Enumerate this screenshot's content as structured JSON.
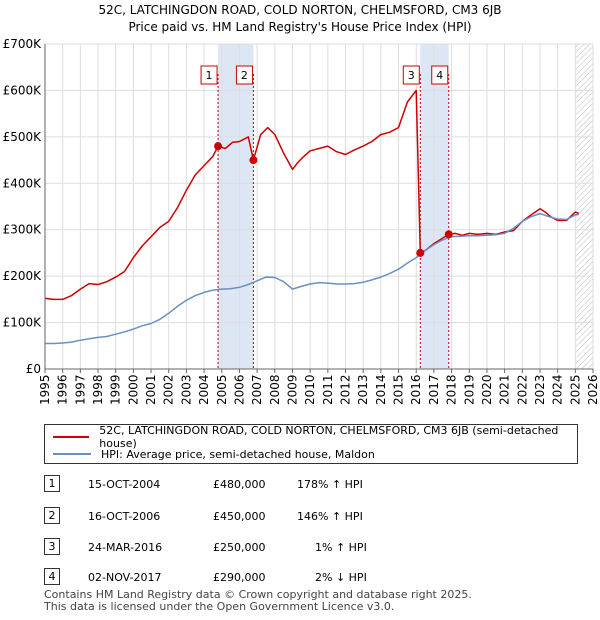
{
  "title": "52C, LATCHINGDON ROAD, COLD NORTON, CHELMSFORD, CM3 6JB",
  "subtitle": "Price paid vs. HM Land Registry's House Price Index (HPI)",
  "colors": {
    "property": "#cc0000",
    "hpi": "#6b8fc4",
    "shade": "#dde6f5",
    "marker_line": "#cc0000",
    "grid": "#dddddd"
  },
  "legend": {
    "property_label": "52C, LATCHINGDON ROAD, COLD NORTON, CHELMSFORD, CM3 6JB (semi-detached house)",
    "hpi_label": "HPI: Average price, semi-detached house, Maldon"
  },
  "sales": [
    {
      "num": "1",
      "date": "15-OCT-2004",
      "price": "£480,000",
      "hpi_delta": "178% ↑ HPI"
    },
    {
      "num": "2",
      "date": "16-OCT-2006",
      "price": "£450,000",
      "hpi_delta": "146% ↑ HPI"
    },
    {
      "num": "3",
      "date": "24-MAR-2016",
      "price": "£250,000",
      "hpi_delta": "1% ↑ HPI"
    },
    {
      "num": "4",
      "date": "02-NOV-2017",
      "price": "£290,000",
      "hpi_delta": "2% ↓ HPI"
    }
  ],
  "footer": {
    "line1": "Contains HM Land Registry data © Crown copyright and database right 2025.",
    "line2": "This data is licensed under the Open Government Licence v3.0."
  },
  "chart_data": {
    "type": "line",
    "xlim": [
      1995,
      2026
    ],
    "ylim": [
      0,
      700000
    ],
    "grid": true,
    "legend_position": "below",
    "y_ticks": [
      {
        "value": 0,
        "label": "£0"
      },
      {
        "value": 100000,
        "label": "£100K"
      },
      {
        "value": 200000,
        "label": "£200K"
      },
      {
        "value": 300000,
        "label": "£300K"
      },
      {
        "value": 400000,
        "label": "£400K"
      },
      {
        "value": 500000,
        "label": "£500K"
      },
      {
        "value": 600000,
        "label": "£600K"
      },
      {
        "value": 700000,
        "label": "£700K"
      }
    ],
    "x_ticks": [
      "1995",
      "1996",
      "1997",
      "1998",
      "1999",
      "2000",
      "2001",
      "2002",
      "2003",
      "2004",
      "2005",
      "2006",
      "2007",
      "2008",
      "2009",
      "2010",
      "2011",
      "2012",
      "2013",
      "2014",
      "2015",
      "2016",
      "2017",
      "2018",
      "2019",
      "2020",
      "2021",
      "2022",
      "2023",
      "2024",
      "2025",
      "2026"
    ],
    "shaded_ranges": [
      [
        2004.79,
        2006.79
      ],
      [
        2016.23,
        2017.84
      ]
    ],
    "future_hatch_from": 2025.0,
    "series": [
      {
        "name": "52C, LATCHINGDON ROAD, COLD NORTON, CHELMSFORD, CM3 6JB (semi-detached house)",
        "color": "#cc0000",
        "x": [
          1995.0,
          1995.5,
          1996.0,
          1996.5,
          1997.0,
          1997.5,
          1998.0,
          1998.5,
          1999.0,
          1999.5,
          2000.0,
          2000.5,
          2001.0,
          2001.5,
          2002.0,
          2002.5,
          2003.0,
          2003.5,
          2004.0,
          2004.5,
          2004.79,
          2005.2,
          2005.6,
          2006.0,
          2006.5,
          2006.79,
          2007.2,
          2007.6,
          2008.0,
          2008.5,
          2009.0,
          2009.3,
          2009.7,
          2010.0,
          2010.5,
          2011.0,
          2011.5,
          2012.0,
          2012.5,
          2013.0,
          2013.5,
          2014.0,
          2014.5,
          2015.0,
          2015.5,
          2016.0,
          2016.23,
          2016.5,
          2017.0,
          2017.5,
          2017.84,
          2018.2,
          2018.6,
          2019.0,
          2019.5,
          2020.0,
          2020.5,
          2021.0,
          2021.5,
          2022.0,
          2022.5,
          2023.0,
          2023.3,
          2023.6,
          2024.0,
          2024.5,
          2025.0,
          2025.2
        ],
        "values": [
          152000,
          150000,
          150000,
          158000,
          172000,
          184000,
          182000,
          188000,
          198000,
          210000,
          240000,
          265000,
          285000,
          305000,
          318000,
          348000,
          385000,
          418000,
          438000,
          458000,
          480000,
          475000,
          488000,
          490000,
          500000,
          450000,
          505000,
          520000,
          505000,
          465000,
          430000,
          445000,
          460000,
          470000,
          475000,
          480000,
          468000,
          462000,
          472000,
          480000,
          490000,
          505000,
          510000,
          520000,
          575000,
          600000,
          250000,
          255000,
          270000,
          282000,
          290000,
          292000,
          288000,
          292000,
          290000,
          292000,
          290000,
          295000,
          298000,
          318000,
          332000,
          345000,
          338000,
          328000,
          320000,
          320000,
          338000,
          335000
        ]
      },
      {
        "name": "HPI: Average price, semi-detached house, Maldon",
        "color": "#6b8fc4",
        "x": [
          1995.0,
          1995.5,
          1996.0,
          1996.5,
          1997.0,
          1997.5,
          1998.0,
          1998.5,
          1999.0,
          1999.5,
          2000.0,
          2000.5,
          2001.0,
          2001.5,
          2002.0,
          2002.5,
          2003.0,
          2003.5,
          2004.0,
          2004.5,
          2005.0,
          2005.5,
          2006.0,
          2006.5,
          2007.0,
          2007.5,
          2008.0,
          2008.5,
          2009.0,
          2009.5,
          2010.0,
          2010.5,
          2011.0,
          2011.5,
          2012.0,
          2012.5,
          2013.0,
          2013.5,
          2014.0,
          2014.5,
          2015.0,
          2015.5,
          2016.0,
          2016.5,
          2017.0,
          2017.5,
          2018.0,
          2018.5,
          2019.0,
          2019.5,
          2020.0,
          2020.5,
          2021.0,
          2021.5,
          2022.0,
          2022.5,
          2023.0,
          2023.5,
          2024.0,
          2024.5,
          2025.0,
          2025.2
        ],
        "values": [
          55000,
          55000,
          56000,
          58000,
          62000,
          65000,
          68000,
          70000,
          75000,
          80000,
          86000,
          93000,
          98000,
          107000,
          120000,
          135000,
          148000,
          158000,
          165000,
          170000,
          172000,
          173000,
          176000,
          182000,
          190000,
          198000,
          197000,
          188000,
          172000,
          178000,
          183000,
          186000,
          185000,
          183000,
          183000,
          184000,
          187000,
          192000,
          198000,
          206000,
          215000,
          228000,
          240000,
          255000,
          268000,
          278000,
          285000,
          286000,
          287000,
          287000,
          288000,
          289000,
          292000,
          303000,
          318000,
          328000,
          335000,
          328000,
          323000,
          322000,
          332000,
          333000
        ]
      }
    ],
    "sale_points": [
      {
        "label": "1",
        "x": 2004.79,
        "y": 480000
      },
      {
        "label": "2",
        "x": 2006.79,
        "y": 450000
      },
      {
        "label": "3",
        "x": 2016.23,
        "y": 250000
      },
      {
        "label": "4",
        "x": 2017.84,
        "y": 290000
      }
    ]
  }
}
